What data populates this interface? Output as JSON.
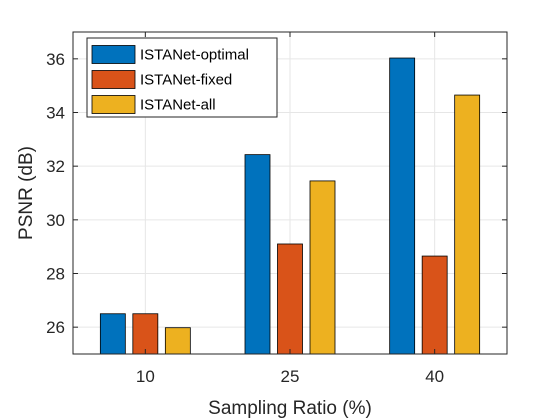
{
  "chart_data": {
    "type": "bar",
    "categories": [
      "10",
      "25",
      "40"
    ],
    "series": [
      {
        "name": "ISTANet-optimal",
        "values": [
          26.5,
          32.43,
          36.03
        ],
        "color": "#0072BD"
      },
      {
        "name": "ISTANet-fixed",
        "values": [
          26.5,
          29.1,
          28.65
        ],
        "color": "#D95319"
      },
      {
        "name": "ISTANet-all",
        "values": [
          25.98,
          31.45,
          34.65
        ],
        "color": "#EDB120"
      }
    ],
    "xlabel": "Sampling Ratio (%)",
    "ylabel": "PSNR (dB)",
    "ylim": [
      25,
      37
    ],
    "yticks": [
      26,
      28,
      30,
      32,
      34,
      36
    ],
    "grid": true,
    "legend_position": "top-left"
  }
}
